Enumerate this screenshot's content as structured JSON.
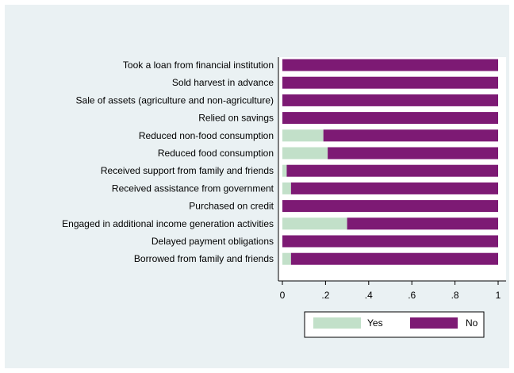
{
  "chart_data": {
    "type": "bar",
    "orientation": "horizontal",
    "stacked": true,
    "title": "",
    "xlabel": "",
    "ylabel": "",
    "xlim": [
      0,
      1
    ],
    "x_ticks": [
      0,
      0.2,
      0.4,
      0.6,
      0.8,
      1
    ],
    "x_tick_labels": [
      "0",
      ".2",
      ".4",
      ".6",
      ".8",
      "1"
    ],
    "grid": false,
    "legend_position": "bottom",
    "categories": [
      "Took a loan from financial institution",
      "Sold harvest in advance",
      "Sale of assets (agriculture and non-agriculture)",
      "Relied on savings",
      "Reduced non-food consumption",
      "Reduced food consumption",
      "Received support from family and friends",
      "Received assistance from government",
      "Purchased on credit",
      "Engaged in additional income generation activities",
      "Delayed payment obligations",
      "Borrowed from family and friends"
    ],
    "series": [
      {
        "name": "Yes",
        "color": "#c2e0c9",
        "values": [
          0.0,
          0.0,
          0.0,
          0.0,
          0.19,
          0.21,
          0.02,
          0.04,
          0.0,
          0.3,
          0.0,
          0.04
        ]
      },
      {
        "name": "No",
        "color": "#7d1a74",
        "values": [
          1.0,
          1.0,
          1.0,
          1.0,
          0.81,
          0.79,
          0.98,
          0.96,
          1.0,
          0.7,
          1.0,
          0.96
        ]
      }
    ]
  }
}
